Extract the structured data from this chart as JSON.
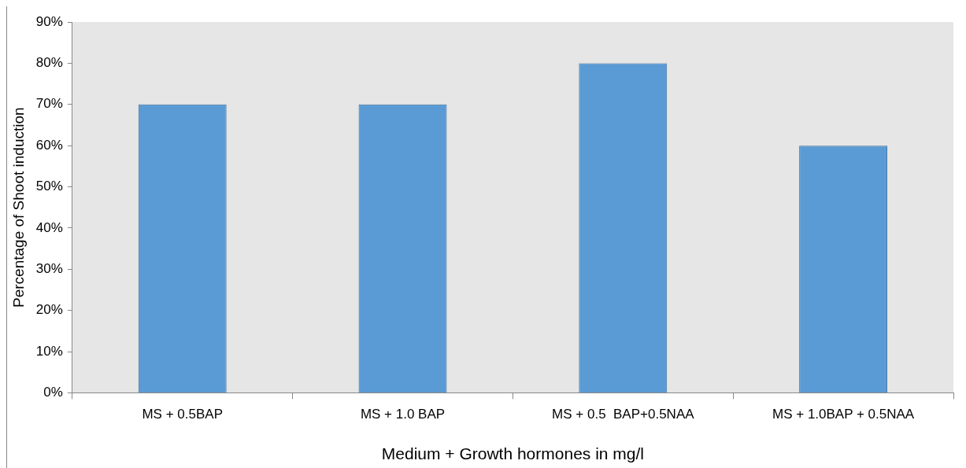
{
  "chart_data": {
    "type": "bar",
    "xlabel": "Medium + Growth hormones in mg/l",
    "ylabel": "Percentage of Shoot induction",
    "categories": [
      "MS + 0.5BAP",
      "MS + 1.0 BAP",
      "MS + 0.5  BAP+0.5NAA",
      "MS + 1.0BAP + 0.5NAA"
    ],
    "values": [
      70,
      70,
      80,
      60
    ],
    "color": "#5b9bd5",
    "ylim": [
      0,
      90
    ],
    "yticks": [
      {
        "value": 0,
        "label": "0%"
      },
      {
        "value": 10,
        "label": "10%"
      },
      {
        "value": 20,
        "label": "20%"
      },
      {
        "value": 30,
        "label": "30%"
      },
      {
        "value": 40,
        "label": "40%"
      },
      {
        "value": 50,
        "label": "50%"
      },
      {
        "value": 60,
        "label": "60%"
      },
      {
        "value": 70,
        "label": "70%"
      },
      {
        "value": 80,
        "label": "80%"
      },
      {
        "value": 90,
        "label": "90%"
      }
    ],
    "grid": false,
    "legend": false
  }
}
